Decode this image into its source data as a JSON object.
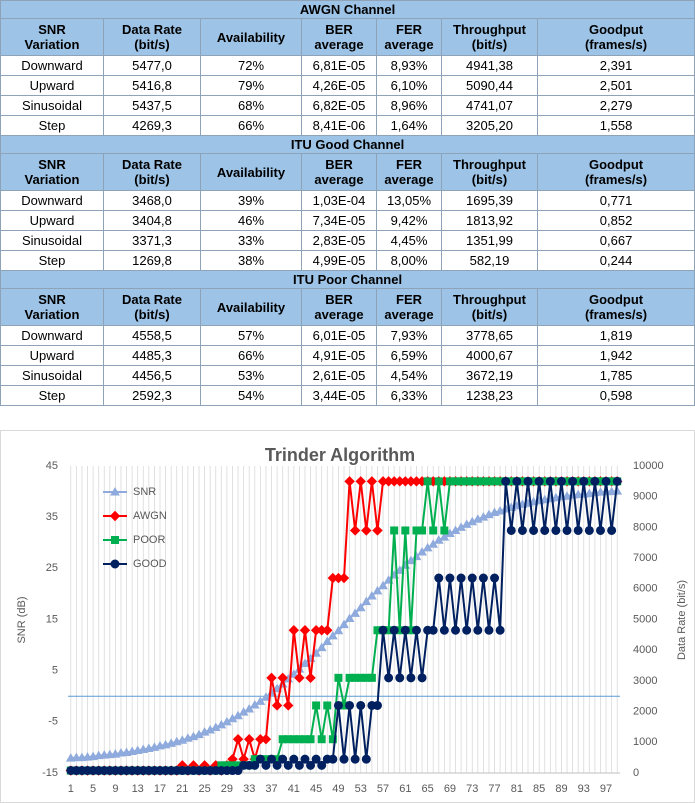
{
  "table": {
    "sections": [
      {
        "title": "AWGN  Channel",
        "header": [
          "SNR\nVariation",
          "Data Rate\n(bit/s)",
          "Availability",
          "BER\naverage",
          "FER\naverage",
          "Throughput\n(bit/s)",
          "Goodput\n(frames/s)"
        ],
        "rows": [
          [
            "Downward",
            "5477,0",
            "72%",
            "6,81E-05",
            "8,93%",
            "4941,38",
            "2,391"
          ],
          [
            "Upward",
            "5416,8",
            "79%",
            "4,26E-05",
            "6,10%",
            "5090,44",
            "2,501"
          ],
          [
            "Sinusoidal",
            "5437,5",
            "68%",
            "6,82E-05",
            "8,96%",
            "4741,07",
            "2,279"
          ],
          [
            "Step",
            "4269,3",
            "66%",
            "8,41E-06",
            "1,64%",
            "3205,20",
            "1,558"
          ]
        ]
      },
      {
        "title": "ITU Good Channel",
        "header": [
          "SNR\nVariation",
          "Data Rate\n(bit/s)",
          "Availability",
          "BER\naverage",
          "FER\naverage",
          "Throughput\n(bit/s)",
          "Goodput\n(frames/s)"
        ],
        "rows": [
          [
            "Downward",
            "3468,0",
            "39%",
            "1,03E-04",
            "13,05%",
            "1695,39",
            "0,771"
          ],
          [
            "Upward",
            "3404,8",
            "46%",
            "7,34E-05",
            "9,42%",
            "1813,92",
            "0,852"
          ],
          [
            "Sinusoidal",
            "3371,3",
            "33%",
            "2,83E-05",
            "4,45%",
            "1351,99",
            "0,667"
          ],
          [
            "Step",
            "1269,8",
            "38%",
            "4,99E-05",
            "8,00%",
            "582,19",
            "0,244"
          ]
        ]
      },
      {
        "title": "ITU Poor Channel",
        "header": [
          "SNR\nVariation",
          "Data Rate\n(bit/s)",
          "Availability",
          "BER\naverage",
          "FER\naverage",
          "Throughput\n(bit/s)",
          "Goodput\n(frames/s)"
        ],
        "rows": [
          [
            "Downward",
            "4558,5",
            "57%",
            "6,01E-05",
            "7,93%",
            "3778,65",
            "1,819"
          ],
          [
            "Upward",
            "4485,3",
            "66%",
            "4,91E-05",
            "6,59%",
            "4000,67",
            "1,942"
          ],
          [
            "Sinusoidal",
            "4456,5",
            "53%",
            "2,61E-05",
            "4,54%",
            "3672,19",
            "1,785"
          ],
          [
            "Step",
            "2592,3",
            "54%",
            "3,44E-05",
            "6,33%",
            "1238,23",
            "0,598"
          ]
        ]
      }
    ]
  },
  "chart_data": {
    "type": "line",
    "title": "Trinder Algorithm",
    "ylabel": "SNR (dB)",
    "y2label": "Data Rate (bit/s)",
    "x": [
      1,
      2,
      3,
      4,
      5,
      6,
      7,
      8,
      9,
      10,
      11,
      12,
      13,
      14,
      15,
      16,
      17,
      18,
      19,
      20,
      21,
      22,
      23,
      24,
      25,
      26,
      27,
      28,
      29,
      30,
      31,
      32,
      33,
      34,
      35,
      36,
      37,
      38,
      39,
      40,
      41,
      42,
      43,
      44,
      45,
      46,
      47,
      48,
      49,
      50,
      51,
      52,
      53,
      54,
      55,
      56,
      57,
      58,
      59,
      60,
      61,
      62,
      63,
      64,
      65,
      66,
      67,
      68,
      69,
      70,
      71,
      72,
      73,
      74,
      75,
      76,
      77,
      78,
      79,
      80,
      81,
      82,
      83,
      84,
      85,
      86,
      87,
      88,
      89,
      90,
      91,
      92,
      93,
      94,
      95,
      96,
      97,
      98,
      99
    ],
    "xlim": [
      0.5,
      99.5
    ],
    "xticks": [
      1,
      5,
      9,
      13,
      17,
      21,
      25,
      29,
      33,
      37,
      41,
      45,
      49,
      53,
      57,
      61,
      65,
      69,
      73,
      77,
      81,
      85,
      89,
      93,
      97
    ],
    "ylim": [
      -15,
      45
    ],
    "yticks": [
      -15,
      -5,
      5,
      15,
      25,
      35,
      45
    ],
    "y2lim": [
      0,
      10000
    ],
    "y2ticks": [
      0,
      1000,
      2000,
      3000,
      4000,
      5000,
      6000,
      7000,
      8000,
      9000,
      10000
    ],
    "grid": true,
    "legend": "upper left",
    "series": [
      {
        "name": "SNR",
        "color": "#8faadc",
        "marker": "triangle",
        "values": [
          -12.1,
          -12.0,
          -12.0,
          -11.9,
          -11.8,
          -11.6,
          -11.5,
          -11.4,
          -11.3,
          -11.1,
          -11.0,
          -10.8,
          -10.6,
          -10.4,
          -10.2,
          -10.0,
          -9.7,
          -9.5,
          -9.2,
          -8.9,
          -8.6,
          -8.2,
          -7.9,
          -7.5,
          -7.0,
          -6.6,
          -6.1,
          -5.6,
          -5.0,
          -4.4,
          -3.8,
          -3.1,
          -2.5,
          -1.7,
          -1.0,
          -0.2,
          0.7,
          1.5,
          2.4,
          3.4,
          4.3,
          5.3,
          6.4,
          7.4,
          8.4,
          9.5,
          10.7,
          11.8,
          12.8,
          14.0,
          15.2,
          16.2,
          17.3,
          18.5,
          19.6,
          20.6,
          21.6,
          22.7,
          23.7,
          24.6,
          25.6,
          26.5,
          27.3,
          28.2,
          29.0,
          29.7,
          30.5,
          31.1,
          31.8,
          32.4,
          33.0,
          33.6,
          34.1,
          34.6,
          35.0,
          35.5,
          35.9,
          36.2,
          36.6,
          36.9,
          37.2,
          37.5,
          37.7,
          38.0,
          38.2,
          38.4,
          38.6,
          38.8,
          39.0,
          39.1,
          39.3,
          39.4,
          39.5,
          39.6,
          39.8,
          39.9,
          40.0,
          40.0,
          40.1
        ]
      },
      {
        "name": "AWGN",
        "color": "#ff0000",
        "marker": "diamond",
        "axis": "y2",
        "values": [
          80,
          80,
          80,
          80,
          80,
          80,
          80,
          80,
          80,
          80,
          80,
          80,
          80,
          80,
          80,
          80,
          80,
          80,
          80,
          80,
          250,
          80,
          250,
          80,
          250,
          80,
          250,
          80,
          250,
          450,
          1100,
          450,
          1100,
          450,
          1100,
          1100,
          3100,
          2200,
          3100,
          2200,
          4650,
          3100,
          4650,
          3100,
          4650,
          4650,
          4650,
          6350,
          6350,
          6350,
          9500,
          7900,
          9500,
          7900,
          9500,
          7900,
          9500,
          9500,
          9500,
          9500,
          9500,
          9500,
          9500,
          9500,
          9500,
          9500,
          9500,
          9500,
          9500,
          9500,
          9500,
          9500,
          9500,
          9500,
          9500,
          9500,
          9500,
          9500,
          9500,
          9500,
          9500,
          9500,
          9500,
          9500,
          9500,
          9500,
          9500,
          9500,
          9500,
          9500,
          9500,
          9500,
          9500,
          9500,
          9500,
          9500,
          9500,
          9500,
          9500
        ]
      },
      {
        "name": "POOR",
        "color": "#00b050",
        "marker": "square",
        "axis": "y2",
        "values": [
          80,
          80,
          80,
          80,
          80,
          80,
          80,
          80,
          80,
          80,
          80,
          80,
          80,
          80,
          80,
          80,
          80,
          80,
          80,
          80,
          80,
          80,
          80,
          80,
          80,
          80,
          80,
          250,
          250,
          250,
          250,
          250,
          250,
          450,
          450,
          450,
          450,
          450,
          1100,
          1100,
          1100,
          1100,
          1100,
          1100,
          2200,
          1100,
          2200,
          1100,
          3100,
          2200,
          3100,
          3100,
          3100,
          3100,
          3100,
          4650,
          4650,
          4650,
          7900,
          4650,
          7900,
          4650,
          7900,
          7900,
          9500,
          7900,
          9500,
          7900,
          9500,
          9500,
          9500,
          9500,
          9500,
          9500,
          9500,
          9500,
          9500,
          9500,
          9500,
          9500,
          9500,
          9500,
          9500,
          9500,
          9500,
          9500,
          9500,
          9500,
          9500,
          9500,
          9500,
          9500,
          9500,
          9500,
          9500,
          9500,
          9500,
          9500,
          9500
        ]
      },
      {
        "name": "GOOD",
        "color": "#002060",
        "marker": "circle",
        "axis": "y2",
        "values": [
          80,
          80,
          80,
          80,
          80,
          80,
          80,
          80,
          80,
          80,
          80,
          80,
          80,
          80,
          80,
          80,
          80,
          80,
          80,
          80,
          80,
          80,
          80,
          80,
          80,
          80,
          80,
          80,
          80,
          80,
          80,
          250,
          250,
          250,
          450,
          250,
          450,
          250,
          450,
          250,
          450,
          250,
          450,
          250,
          450,
          250,
          450,
          450,
          2200,
          450,
          2200,
          450,
          2200,
          450,
          2200,
          2200,
          4650,
          3100,
          4650,
          3100,
          4650,
          3100,
          4650,
          3100,
          4650,
          4650,
          6350,
          4650,
          6350,
          4650,
          6350,
          4650,
          6350,
          4650,
          6350,
          4650,
          6350,
          4650,
          9500,
          7900,
          9500,
          7900,
          9500,
          7900,
          9500,
          7900,
          9500,
          7900,
          9500,
          7900,
          9500,
          7900,
          9500,
          7900,
          9500,
          7900,
          9500,
          7900,
          9500
        ]
      }
    ]
  }
}
